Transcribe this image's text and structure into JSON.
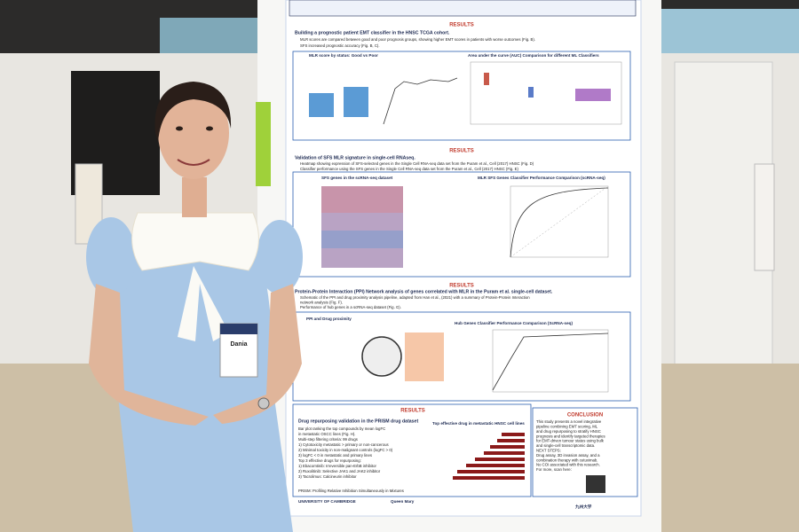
{
  "poster": {
    "sections": [
      {
        "heading": "RESULTS",
        "title": "Building a prognostic patient EMT classifier in the HNSC TCGA cohort.",
        "bullets": [
          "MLR scores are compared between good and poor prognosis groups, showing higher EMT scores in patients with worse outcomes (Fig. B).",
          "SFS increased prognostic accuracy (Fig. B, C)."
        ],
        "panels": [
          "MLR score by status: Good vs Poor",
          "Area under the curve (AUC) Comparison for different ML Classifiers"
        ]
      },
      {
        "heading": "RESULTS",
        "title": "Validation of SFS MLR signature in single-cell RNAseq.",
        "bullets": [
          "Heatmap showing expression of SFS-selected genes in the Single Cell RNA-seq data set from the Puram et al., Cell (2017) HNSC (Fig. D)",
          "Classifier performance using the SFS genes in the Single Cell RNA-seq data set from the Puram et al., Cell (2017) HNSC (Fig. E)"
        ],
        "panels": [
          "SFS genes in the scRNA-seq dataset",
          "MLR SFS Genes Classifier Performance Comparison (scRNA-seq)"
        ]
      },
      {
        "heading": "RESULTS",
        "title": "Protein-Protein Interaction (PPI) Network analysis of genes correlated with MLR in the Puram et al. single-cell dataset.",
        "bullets": [
          "Schematic of the PPI and drug proximity analysis pipeline, adapted from Han et al., (2021) with a summary of Protein-Protein Interaction",
          "network analysis (Fig. F).",
          "Performance of hub genes in a scRNA-seq dataset (Fig. G)."
        ],
        "panels": [
          "PPI and Drug proximity",
          "Hub Genes Classifier Performance Comparison (ScRNA-seq)"
        ]
      },
      {
        "heading": "RESULTS",
        "title": "Drug repurposing validation in the PRISM drug dataset",
        "bullets": [
          "Bar plot ranking the top compounds by mean logFC",
          "in metastatic OSCC lines (Fig. H).",
          "Multi-step filtering criteria: 99 drugs",
          "1) Cytotoxicity metastatic > primary or non-cancerous",
          "2) Minimal toxicity in non-malignant controls (logFC > 0)",
          "3) logFC < 0 in metastatic and primary lines",
          "Top 3 effective drugs for repurposing:",
          "1) Ebacomtinib: Irreversible pan-ErbB inhibitor",
          "2) Ruxolitinib: Selective JAK1 and JAK2 inhibitor",
          "3) Tacrolimus: Calcineurin inhibitor"
        ],
        "panels": [
          "Top effective drug in metastatic HNSC cell lines"
        ]
      }
    ],
    "conclusion": {
      "heading": "CONCLUSION",
      "lines": [
        "This study presents a novel integrative",
        "pipeline combining EMT scoring, ML",
        "and drug repurposing to stratify HNSC",
        "prognosis and identify targeted therapies",
        "for EMT-driven tumour states using bulk",
        "and single-cell transcriptomic data.",
        "NEXT STEPS:",
        "Drug assay, 3D invasion assay, and a",
        "combination therapy with cetuximab.",
        "No COI associated with this research.",
        "For more, scan here:"
      ]
    },
    "footnote": "PRISM: Profiling Relative Inhibition Simultaneously in Mixtures",
    "logos": [
      "UNIVERSITY OF CAMBRIDGE",
      "Queen Mary",
      "九州大学"
    ]
  },
  "badge": {
    "name": "Dania"
  }
}
